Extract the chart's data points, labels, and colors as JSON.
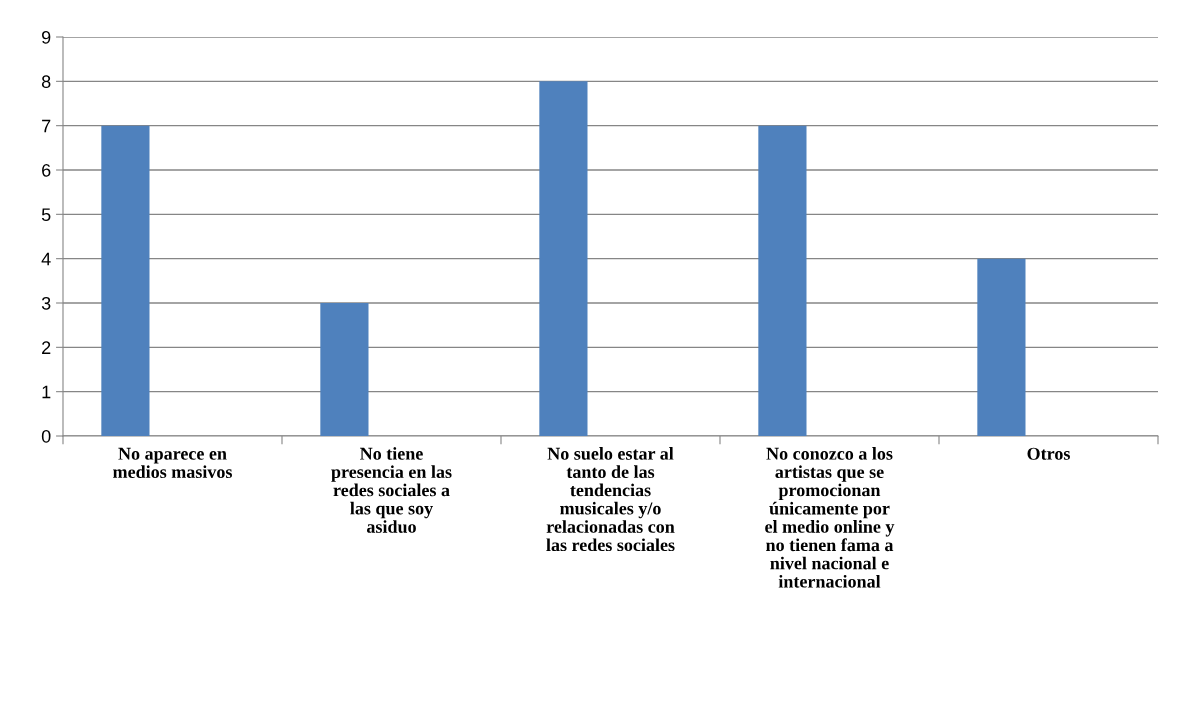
{
  "chart_data": {
    "type": "bar",
    "categories": [
      "No aparece en\nmedios masivos",
      "No tiene\npresencia en las\nredes sociales a\nlas que soy\nasiduo",
      "No suelo estar al\ntanto de las\ntendencias\nmusicales y/o\nrelacionadas con\nlas redes sociales",
      "No conozco a los\nartistas que se\npromocionan\núnicamente por\nel medio online y\nno tienen fama a\nnivel nacional e\ninternacional",
      "Otros"
    ],
    "values": [
      7,
      3,
      8,
      7,
      4
    ],
    "color": "#4f81bd",
    "ylim": [
      0,
      9
    ],
    "yticks": [
      0,
      1,
      2,
      3,
      4,
      5,
      6,
      7,
      8,
      9
    ],
    "grid": "y",
    "legend": false
  }
}
